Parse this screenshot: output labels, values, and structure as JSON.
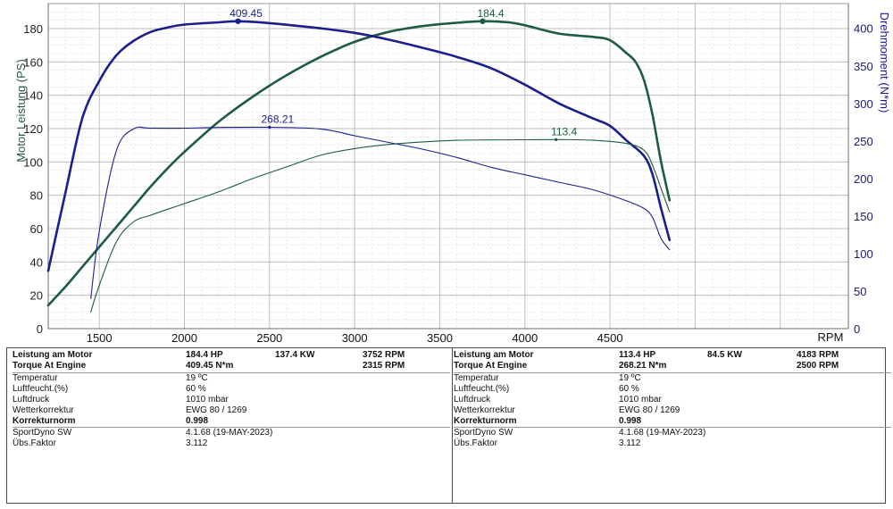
{
  "chart_data": {
    "type": "line",
    "xlabel": "RPM",
    "ylabel_left": "Motor Leistung (PS)",
    "ylabel_right": "Drehmoment (N*m)",
    "xlim": [
      1200,
      5900
    ],
    "ylim_left": [
      0,
      195
    ],
    "ylim_right": [
      0,
      433
    ],
    "x_ticks": [
      1500,
      2000,
      2500,
      3000,
      3500,
      4000,
      4500
    ],
    "y_ticks_left": [
      0,
      20,
      40,
      60,
      80,
      100,
      120,
      140,
      160,
      180
    ],
    "y_ticks_right": [
      0,
      50,
      100,
      150,
      200,
      250,
      300,
      350,
      400
    ],
    "grid": true,
    "colors": {
      "power": "#1e5c3f",
      "torque": "#1a1f8c",
      "grid_major": "#bdbdbd",
      "grid_minor": "#dddddd"
    },
    "series": [
      {
        "axis": "left",
        "kind": "power",
        "weight": "bold",
        "peak": {
          "x": 3752,
          "y": 184.4,
          "label": "184.4"
        },
        "x": [
          1200,
          1300,
          1400,
          1500,
          1600,
          1700,
          1800,
          1900,
          2000,
          2200,
          2400,
          2600,
          2800,
          3000,
          3200,
          3400,
          3600,
          3752,
          3900,
          4000,
          4200,
          4400,
          4500,
          4600,
          4650,
          4700,
          4750,
          4800,
          4850
        ],
        "y": [
          14,
          25,
          37,
          49,
          61,
          73,
          85,
          96,
          106,
          124,
          139,
          152,
          163,
          172,
          178,
          181.5,
          183.5,
          184.4,
          183.8,
          182,
          177,
          175,
          173,
          165,
          160,
          149,
          128,
          100,
          77
        ]
      },
      {
        "axis": "right",
        "kind": "torque",
        "weight": "bold",
        "peak": {
          "x": 2315,
          "y": 409.45,
          "label": "409.45"
        },
        "x": [
          1200,
          1300,
          1400,
          1500,
          1600,
          1700,
          1800,
          1900,
          2000,
          2200,
          2315,
          2500,
          2800,
          3000,
          3200,
          3400,
          3600,
          3800,
          4000,
          4200,
          4400,
          4500,
          4600,
          4700,
          4750,
          4800,
          4850
        ],
        "y": [
          77,
          180,
          280,
          330,
          364,
          383,
          395,
          401,
          405,
          408,
          409.45,
          407,
          400,
          394,
          385,
          374,
          362,
          347,
          325,
          300,
          280,
          270,
          250,
          230,
          205,
          160,
          118
        ]
      },
      {
        "axis": "left",
        "kind": "power",
        "weight": "thin",
        "peak": {
          "x": 4183,
          "y": 113.4,
          "label": "113.4"
        },
        "x": [
          1450,
          1500,
          1600,
          1700,
          1800,
          2000,
          2200,
          2400,
          2600,
          2800,
          3000,
          3200,
          3400,
          3600,
          3800,
          4000,
          4183,
          4400,
          4600,
          4700,
          4750,
          4800,
          4850
        ],
        "y": [
          10,
          26,
          52,
          64,
          68,
          75,
          82,
          90,
          97,
          104,
          108,
          110.5,
          112,
          113,
          113.2,
          113.3,
          113.4,
          113,
          111,
          107,
          98,
          84,
          70
        ]
      },
      {
        "axis": "right",
        "kind": "torque",
        "weight": "thin",
        "peak": {
          "x": 2500,
          "y": 268.21,
          "label": "268.21"
        },
        "x": [
          1450,
          1500,
          1600,
          1700,
          1800,
          2000,
          2200,
          2500,
          2800,
          3000,
          3200,
          3400,
          3600,
          3800,
          4000,
          4200,
          4400,
          4600,
          4700,
          4750,
          4800,
          4850
        ],
        "y": [
          40,
          130,
          237,
          266,
          267,
          267,
          268,
          268.21,
          266,
          257,
          248,
          239,
          228,
          215,
          205,
          195,
          185,
          170,
          160,
          148,
          120,
          105
        ]
      }
    ]
  },
  "report": {
    "left": {
      "line1": {
        "label": "Leistung am Motor",
        "val1": "184.4 HP",
        "val2": "137.4 KW",
        "val3": "3752 RPM"
      },
      "line2": {
        "label": "Torque At Engine",
        "val1": "409.45 N*m",
        "val3": "2315 RPM"
      },
      "temp": {
        "label": "Temperatur",
        "value": "19 ºC"
      },
      "hum": {
        "label": "Luftfeucht.(%)",
        "value": "60 %"
      },
      "press": {
        "label": "Luftdruck",
        "value": "1010 mbar"
      },
      "wetter": {
        "label": "Wetterkorrektur",
        "value": "EWG 80 / 1269"
      },
      "korr": {
        "label": "Korrekturnorm",
        "value": "0.998"
      },
      "sw": {
        "label": "SportDyno SW",
        "value": "4.1.68 (19-MAY-2023)"
      },
      "ubs": {
        "label": "Übs.Faktor",
        "value": "3.112"
      }
    },
    "right": {
      "line1": {
        "label": "Leistung am Motor",
        "val1": "113.4 HP",
        "val2": "84.5 KW",
        "val3": "4183 RPM"
      },
      "line2": {
        "label": "Torque At Engine",
        "val1": "268.21 N*m",
        "val3": "2500 RPM"
      },
      "temp": {
        "label": "Temperatur",
        "value": "19 ºC"
      },
      "hum": {
        "label": "Luftfeucht.(%)",
        "value": "60 %"
      },
      "press": {
        "label": "Luftdruck",
        "value": "1010 mbar"
      },
      "wetter": {
        "label": "Wetterkorrektur",
        "value": "EWG 80 / 1269"
      },
      "korr": {
        "label": "Korrekturnorm",
        "value": "0.998"
      },
      "sw": {
        "label": "SportDyno SW",
        "value": "4.1.68 (19-MAY-2023)"
      },
      "ubs": {
        "label": "Übs.Faktor",
        "value": "3.112"
      }
    }
  }
}
